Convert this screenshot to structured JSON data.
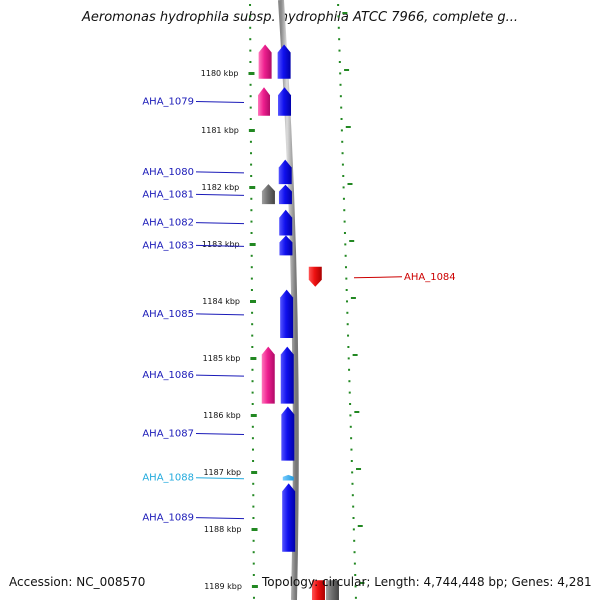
{
  "title": "Aeromonas hydrophila subsp. hydrophila ATCC 7966, complete g...",
  "footer": {
    "accession": "Accession: NC_008570",
    "topology": "Topology: circular; Length: 4,744,448 bp; Genes: 4,281"
  },
  "colors": {
    "gene_forward": "#1010ee",
    "gene_reverse": "#ee1111",
    "gene_pink": "#ee1f8f",
    "gene_gray": "#6f6f6f",
    "gene_light": "#33aaee",
    "ruler_tick": "#228822",
    "label_blue": "#1a1ab8",
    "label_red": "#cc0000",
    "label_cyan": "#22aadd"
  },
  "ruler": {
    "unit": "kbp",
    "ticks": [
      {
        "label": "1180 kbp",
        "pos_kbp": 1180
      },
      {
        "label": "1181 kbp",
        "pos_kbp": 1181
      },
      {
        "label": "1182 kbp",
        "pos_kbp": 1182
      },
      {
        "label": "1183 kbp",
        "pos_kbp": 1183
      },
      {
        "label": "1184 kbp",
        "pos_kbp": 1184
      },
      {
        "label": "1185 kbp",
        "pos_kbp": 1185
      },
      {
        "label": "1186 kbp",
        "pos_kbp": 1186
      },
      {
        "label": "1187 kbp",
        "pos_kbp": 1187
      },
      {
        "label": "1188 kbp",
        "pos_kbp": 1188
      },
      {
        "label": "1189 kbp",
        "pos_kbp": 1189
      }
    ]
  },
  "genes": [
    {
      "name": "",
      "track": "pink",
      "start": 1179.5,
      "end": 1180.1,
      "strand": "+"
    },
    {
      "name": "",
      "track": "forward",
      "start": 1179.5,
      "end": 1180.1,
      "strand": "+"
    },
    {
      "name": "AHA_1079",
      "track": "forward",
      "start": 1180.25,
      "end": 1180.75,
      "strand": "+",
      "label_color": "blue"
    },
    {
      "name": "",
      "track": "pink",
      "start": 1180.25,
      "end": 1180.75,
      "strand": "+"
    },
    {
      "name": "AHA_1080",
      "track": "forward",
      "start": 1181.52,
      "end": 1181.95,
      "strand": "+",
      "label_color": "blue"
    },
    {
      "name": "AHA_1081",
      "track": "forward",
      "start": 1181.96,
      "end": 1182.3,
      "strand": "+",
      "label_color": "blue"
    },
    {
      "name": "",
      "track": "gray",
      "start": 1181.95,
      "end": 1182.3,
      "strand": "+"
    },
    {
      "name": "AHA_1082",
      "track": "forward",
      "start": 1182.4,
      "end": 1182.85,
      "strand": "+",
      "label_color": "blue"
    },
    {
      "name": "AHA_1083",
      "track": "forward",
      "start": 1182.85,
      "end": 1183.2,
      "strand": "+",
      "label_color": "blue"
    },
    {
      "name": "AHA_1084",
      "track": "reverse",
      "start": 1183.4,
      "end": 1183.75,
      "strand": "-",
      "label_color": "red"
    },
    {
      "name": "AHA_1085",
      "track": "forward",
      "start": 1183.8,
      "end": 1184.65,
      "strand": "+",
      "label_color": "blue"
    },
    {
      "name": "AHA_1086",
      "track": "forward",
      "start": 1184.8,
      "end": 1185.8,
      "strand": "+",
      "label_color": "blue"
    },
    {
      "name": "",
      "track": "pink",
      "start": 1184.8,
      "end": 1185.8,
      "strand": "+"
    },
    {
      "name": "AHA_1087",
      "track": "forward",
      "start": 1185.85,
      "end": 1186.8,
      "strand": "+",
      "label_color": "blue"
    },
    {
      "name": "AHA_1088",
      "track": "light",
      "start": 1187.05,
      "end": 1187.15,
      "strand": "+",
      "label_color": "cyan"
    },
    {
      "name": "AHA_1089",
      "track": "forward",
      "start": 1187.2,
      "end": 1188.4,
      "strand": "+",
      "label_color": "blue"
    },
    {
      "name": "",
      "track": "reverse",
      "start": 1188.9,
      "end": 1189.5,
      "strand": "-"
    },
    {
      "name": "",
      "track": "gray_rev",
      "start": 1188.9,
      "end": 1189.5,
      "strand": "-"
    }
  ]
}
